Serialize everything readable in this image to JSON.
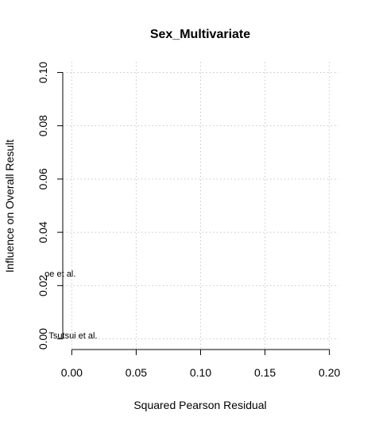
{
  "chart_data": {
    "type": "scatter",
    "title": "Sex_Multivariate",
    "xlabel": "Squared Pearson Residual",
    "ylabel": "Influence on Overall Result",
    "xlim": [
      -0.007,
      0.207
    ],
    "ylim": [
      -0.004,
      0.104
    ],
    "xticks": [
      "0.00",
      "0.05",
      "0.10",
      "0.15",
      "0.20"
    ],
    "yticks": [
      "0.00",
      "0.02",
      "0.04",
      "0.06",
      "0.08",
      "0.10"
    ],
    "grid": true,
    "points": [
      {
        "label": "oe et al.",
        "x": -0.009,
        "y": 0.0245
      },
      {
        "label": "Tsutsui et al.",
        "x": 0.001,
        "y": 0.0013
      }
    ]
  }
}
